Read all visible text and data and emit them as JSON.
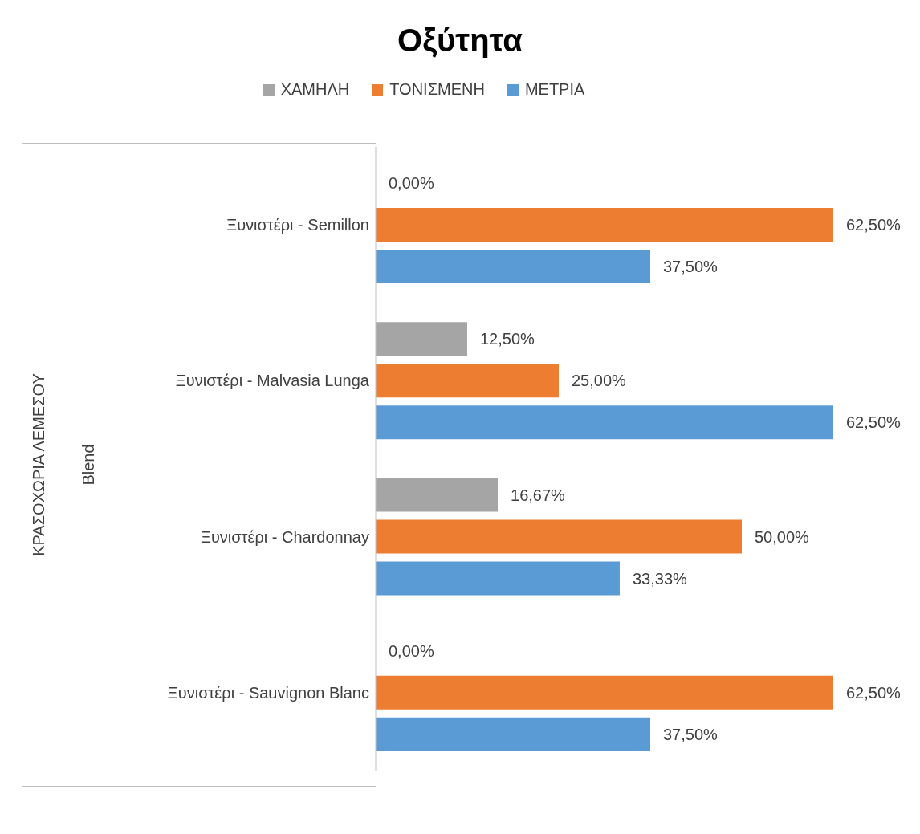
{
  "chart_data": {
    "type": "bar",
    "orientation": "horizontal",
    "title": "Οξύτητα",
    "legend": "top",
    "categories": [
      "Ξυνιστέρι - Semillon",
      "Ξυνιστέρι - Malvasia Lunga",
      "Ξυνιστέρι - Chardonnay",
      "Ξυνιστέρι - Sauvignon Blanc"
    ],
    "series": [
      {
        "name": "ΧΑΜΗΛΗ",
        "color": "#a5a5a5",
        "values": [
          0,
          12.5,
          16.67,
          0
        ],
        "value_labels": [
          "0,00%",
          "12,50%",
          "16,67%",
          "0,00%"
        ]
      },
      {
        "name": "ΤΟΝΙΣΜΕΝΗ",
        "color": "#ed7d31",
        "values": [
          62.5,
          25,
          50,
          62.5
        ],
        "value_labels": [
          "62,50%",
          "25,00%",
          "50,00%",
          "62,50%"
        ]
      },
      {
        "name": "ΜΕΤΡΙΑ",
        "color": "#5b9bd5",
        "values": [
          37.5,
          62.5,
          33.33,
          37.5
        ],
        "value_labels": [
          "37,50%",
          "62,50%",
          "33,33%",
          "37,50%"
        ]
      }
    ],
    "annotations": [
      "ΚΡΑΣΟΧΩΡΙΑ ΛΕΜΕΣΟΥ",
      "Blend"
    ]
  }
}
